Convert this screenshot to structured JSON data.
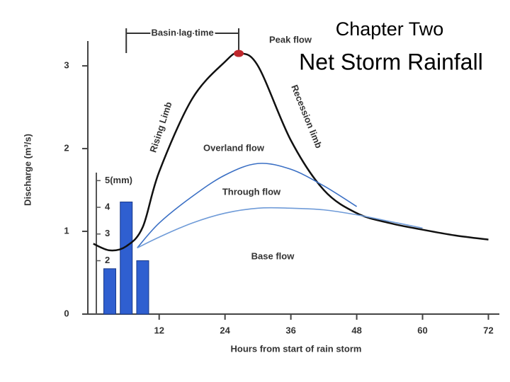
{
  "chart_data": {
    "type": "line",
    "title": "Chapter Two",
    "subtitle": "Net Storm Rainfall",
    "x_label": "Hours from start of rain storm",
    "y_label": "Discharge (m³/s)",
    "xlim": [
      -1,
      74
    ],
    "xticks": [
      12,
      24,
      36,
      48,
      60,
      72
    ],
    "ylim": [
      0,
      3.3
    ],
    "yticks": [
      0,
      1,
      2,
      3
    ],
    "y2lim": [
      0,
      5.3
    ],
    "y2ticks": [
      2,
      3,
      4,
      {
        "value": 5,
        "label": "5(mm)"
      }
    ],
    "series": [
      {
        "name": "Overland flow",
        "color": "#111111",
        "x": [
          0,
          3,
          6,
          9,
          12,
          18,
          24,
          26.5,
          30,
          36,
          42,
          48,
          54,
          60,
          66,
          72
        ],
        "values": [
          0.85,
          0.77,
          0.82,
          1.05,
          1.72,
          2.6,
          3.05,
          3.15,
          3.0,
          2.1,
          1.5,
          1.22,
          1.1,
          1.02,
          0.95,
          0.9
        ]
      },
      {
        "name": "Through flow",
        "color": "#3a6fc4",
        "x": [
          8,
          12,
          18,
          24,
          30,
          36,
          42,
          48
        ],
        "values": [
          0.8,
          1.1,
          1.42,
          1.68,
          1.82,
          1.75,
          1.55,
          1.3
        ]
      },
      {
        "name": "Base flow",
        "color": "#6f9bd8",
        "x": [
          8,
          12,
          18,
          24,
          30,
          36,
          42,
          48,
          54,
          60
        ],
        "values": [
          0.8,
          0.93,
          1.1,
          1.22,
          1.28,
          1.28,
          1.26,
          1.2,
          1.12,
          1.04
        ]
      }
    ],
    "rainfall": {
      "axis": "y2",
      "color": "#2f5fd0",
      "x": [
        3,
        6,
        9
      ],
      "values": [
        1.7,
        4.2,
        2.0
      ]
    },
    "lag_time": {
      "label": "Basin lag time",
      "from": 6,
      "to": 26.5
    },
    "peak": {
      "label": "Peak flow",
      "color": "#c0282d",
      "series": 0,
      "index": 7
    },
    "rising_limb": "Rising Limb",
    "recession_limb": "Recession limb"
  }
}
